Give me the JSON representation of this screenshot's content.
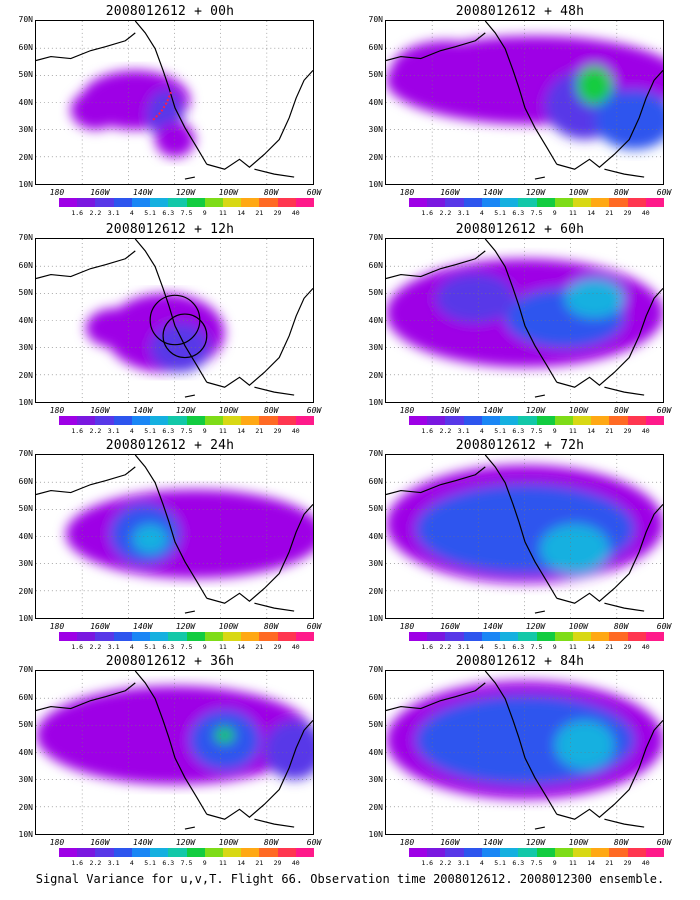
{
  "panels": [
    {
      "title": "2008012612 + 00h"
    },
    {
      "title": "2008012612 + 48h"
    },
    {
      "title": "2008012612 + 12h"
    },
    {
      "title": "2008012612 + 60h"
    },
    {
      "title": "2008012612 + 24h"
    },
    {
      "title": "2008012612 + 72h"
    },
    {
      "title": "2008012612 + 36h"
    },
    {
      "title": "2008012612 + 84h"
    }
  ],
  "lat_labels": [
    "70N",
    "60N",
    "50N",
    "40N",
    "30N",
    "20N",
    "10N"
  ],
  "lon_labels": [
    "180",
    "160W",
    "140W",
    "120W",
    "100W",
    "80W",
    "60W"
  ],
  "colorbar": {
    "labels": [
      "1.6",
      "2.2",
      "3.1",
      "4",
      "5.1",
      "6.3",
      "7.5",
      "9",
      "11",
      "14",
      "21",
      "29",
      "40"
    ],
    "colors": [
      "#9e00e6",
      "#7a18e0",
      "#5838e8",
      "#2d55ee",
      "#1a86f5",
      "#15b0e0",
      "#13c8a8",
      "#12cc40",
      "#7edc18",
      "#d8d814",
      "#ffa814",
      "#ff6a24",
      "#ff3650",
      "#ff1a8a"
    ]
  },
  "footer": "Signal Variance for u,v,T. Flight 66. Observation time 2008012612. 2008012300 ensemble."
}
